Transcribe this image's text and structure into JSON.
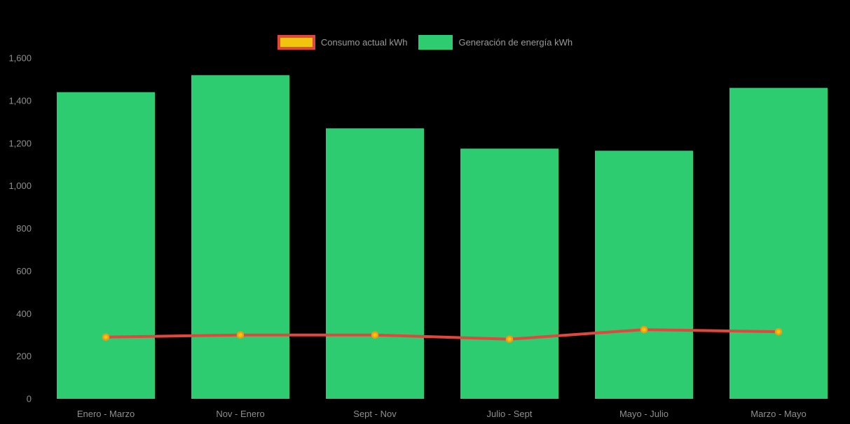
{
  "background_color": "#000000",
  "text_color": "#8f8f8f",
  "legend": {
    "position": "top-center",
    "items": [
      {
        "label": "Consumo actual kWh",
        "swatch_fill": "#f1c40f",
        "swatch_border": "#e0483d"
      },
      {
        "label": "Generación de energía kWh",
        "swatch_fill": "#2ecc71",
        "swatch_border": "#2ecc71"
      }
    ]
  },
  "chart_data": {
    "type": "bar",
    "subtype": "bar-and-line-combo",
    "title": "",
    "xlabel": "",
    "ylabel": "",
    "categories": [
      "Enero - Marzo",
      "Nov - Enero",
      "Sept - Nov",
      "Julio - Sept",
      "Mayo - Julio",
      "Marzo - Mayo"
    ],
    "series": [
      {
        "name": "Consumo actual kWh",
        "type": "line",
        "color": "#e0483d",
        "point_fill": "#f1c40f",
        "point_border": "#f39c12",
        "values": [
          290,
          300,
          300,
          280,
          325,
          315
        ]
      },
      {
        "name": "Generación de energía kWh",
        "type": "bar",
        "color": "#2ecc71",
        "values": [
          1440,
          1520,
          1270,
          1175,
          1165,
          1460
        ]
      }
    ],
    "ylim": [
      0,
      1600
    ],
    "ytick_step": 200,
    "ytick_labels": [
      "0",
      "200",
      "400",
      "600",
      "800",
      "1,000",
      "1,200",
      "1,400",
      "1,600"
    ],
    "grid": false,
    "legend_position": "top"
  }
}
